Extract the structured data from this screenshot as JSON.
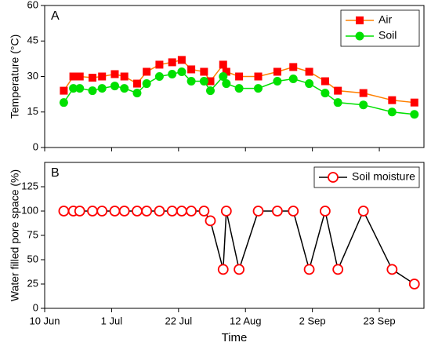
{
  "chart_data": [
    {
      "type": "line",
      "annotation": "A",
      "ylabel": "Temperature (°C)",
      "x": [
        167,
        170,
        172,
        176,
        179,
        183,
        186,
        190,
        193,
        197,
        201,
        204,
        207,
        211,
        213,
        217,
        218,
        222,
        228,
        234,
        239,
        244,
        249,
        253,
        261,
        270,
        277
      ],
      "series": [
        {
          "name": "Air",
          "color": "#ff8000",
          "marker_color": "#ff0000",
          "marker": "square",
          "values": [
            24,
            30,
            30,
            29.5,
            30,
            31,
            30,
            27,
            32,
            35,
            36,
            37,
            33,
            32,
            28,
            35,
            32,
            30,
            30,
            32,
            34,
            32,
            28,
            24,
            23,
            20,
            19
          ]
        },
        {
          "name": "Soil",
          "color": "#00e000",
          "marker_color": "#00e000",
          "marker": "circle",
          "values": [
            19,
            25,
            25,
            24,
            25,
            26,
            25,
            23,
            27,
            30,
            31,
            32,
            28,
            28,
            24,
            30,
            27,
            25,
            25,
            28,
            29,
            27,
            23,
            19,
            18,
            15,
            14
          ]
        }
      ],
      "xlim": [
        161,
        280
      ],
      "ylim": [
        0,
        60
      ],
      "yticks": [
        0,
        15,
        30,
        45,
        60
      ],
      "legend": "upper right"
    },
    {
      "type": "line",
      "annotation": "B",
      "xlabel": "Time",
      "ylabel": "Water filled pore space (%)",
      "x": [
        167,
        170,
        172,
        176,
        179,
        183,
        186,
        190,
        193,
        197,
        201,
        204,
        207,
        211,
        213,
        217,
        218,
        222,
        228,
        234,
        239,
        244,
        249,
        253,
        261,
        270,
        277
      ],
      "series": [
        {
          "name": "Soil moisture",
          "color": "#000000",
          "marker_color": "#ff0000",
          "marker": "open-circle",
          "values": [
            100,
            100,
            100,
            100,
            100,
            100,
            100,
            100,
            100,
            100,
            100,
            100,
            100,
            100,
            90,
            40,
            100,
            40,
            100,
            100,
            100,
            40,
            100,
            40,
            100,
            40,
            25
          ]
        }
      ],
      "xlim": [
        161,
        280
      ],
      "ylim": [
        0,
        150
      ],
      "yticks": [
        0,
        25,
        50,
        75,
        100,
        125
      ],
      "xticks": [
        {
          "value": 161,
          "label": "10 Jun"
        },
        {
          "value": 182,
          "label": "1 Jul"
        },
        {
          "value": 203,
          "label": "22 Jul"
        },
        {
          "value": 224,
          "label": "12 Aug"
        },
        {
          "value": 245,
          "label": "2 Sep"
        },
        {
          "value": 266,
          "label": "23 Sep"
        }
      ],
      "legend": "upper right"
    }
  ]
}
